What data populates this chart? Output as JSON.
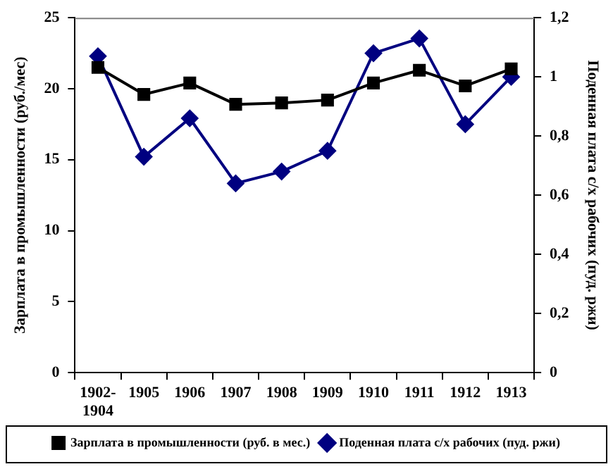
{
  "chart_data": {
    "type": "line",
    "categories": [
      "1902-1904",
      "1905",
      "1906",
      "1907",
      "1908",
      "1909",
      "1910",
      "1911",
      "1912",
      "1913"
    ],
    "ylabel": "Зарплата в промышленности (руб./мес)",
    "y2label": "Поденная плата с/х рабочих (пуд. ржи)",
    "ylim": [
      0,
      25
    ],
    "yticks": [
      0,
      5,
      10,
      15,
      20,
      25
    ],
    "y2lim": [
      0,
      1.2
    ],
    "y2ticks": [
      0,
      {
        "value": 0.2,
        "label": "0,2"
      },
      {
        "value": 0.4,
        "label": "0,4"
      },
      {
        "value": 0.6,
        "label": "0,6"
      },
      {
        "value": 0.8,
        "label": "0,8"
      },
      1,
      {
        "value": 1.2,
        "label": "1,2"
      }
    ],
    "series": [
      {
        "name": "Зарплата в промышленности (руб. в мес.)",
        "color": "#000000",
        "marker": "square",
        "values": [
          21.5,
          19.6,
          20.4,
          18.9,
          19.0,
          19.2,
          20.4,
          21.3,
          20.2,
          21.4
        ]
      },
      {
        "name": "Поденная плата с/х рабочих (пуд. ржи)",
        "color": "#000080",
        "marker": "diamond",
        "axis": "y2",
        "values": [
          1.07,
          0.73,
          0.86,
          0.64,
          0.68,
          0.75,
          1.08,
          1.13,
          0.84,
          1.0
        ]
      }
    ],
    "grid": false,
    "legend": "bottom"
  }
}
